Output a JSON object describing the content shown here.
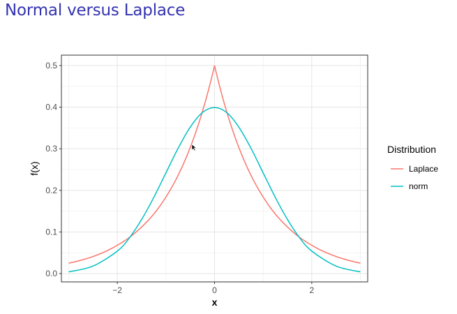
{
  "slide": {
    "title": "Normal versus Laplace"
  },
  "chart_data": {
    "type": "line",
    "title": "",
    "xlabel": "x",
    "ylabel": "f(x)",
    "xlim": [
      -3.15,
      3.15
    ],
    "ylim": [
      -0.02,
      0.525
    ],
    "x_ticks": [
      -2,
      0,
      2
    ],
    "x_tick_labels": [
      "−2",
      "0",
      "2"
    ],
    "y_ticks": [
      0.0,
      0.1,
      0.2,
      0.3,
      0.4,
      0.5
    ],
    "y_tick_labels": [
      "0.0",
      "0.1",
      "0.2",
      "0.3",
      "0.4",
      "0.5"
    ],
    "grid": true,
    "legend": {
      "title": "Distribution",
      "position": "right"
    },
    "x": [
      -3.0,
      -2.5,
      -2.0,
      -1.75,
      -1.5,
      -1.25,
      -1.0,
      -0.75,
      -0.5,
      -0.25,
      0.0,
      0.25,
      0.5,
      0.75,
      1.0,
      1.25,
      1.5,
      1.75,
      2.0,
      2.5,
      3.0
    ],
    "series": [
      {
        "name": "Laplace",
        "color": "#f8766d",
        "values": [
          0.025,
          0.041,
          0.068,
          0.087,
          0.112,
          0.143,
          0.184,
          0.236,
          0.303,
          0.389,
          0.5,
          0.389,
          0.303,
          0.236,
          0.184,
          0.143,
          0.112,
          0.087,
          0.068,
          0.041,
          0.025
        ]
      },
      {
        "name": "norm",
        "color": "#00bfc4",
        "values": [
          0.004,
          0.018,
          0.054,
          0.086,
          0.13,
          0.183,
          0.242,
          0.301,
          0.352,
          0.387,
          0.399,
          0.387,
          0.352,
          0.301,
          0.242,
          0.183,
          0.13,
          0.086,
          0.054,
          0.018,
          0.004
        ]
      }
    ]
  }
}
